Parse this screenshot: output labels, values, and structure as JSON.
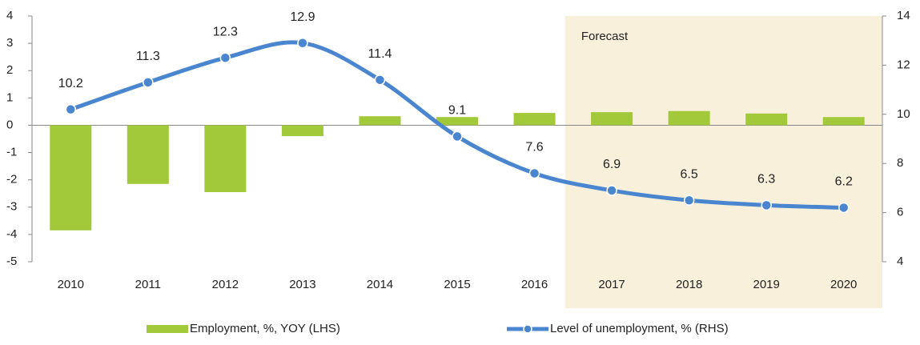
{
  "chart_data": {
    "type": "bar_line",
    "categories": [
      "2010",
      "2011",
      "2012",
      "2013",
      "2014",
      "2015",
      "2016",
      "2017",
      "2018",
      "2019",
      "2020"
    ],
    "series": [
      {
        "name": "Employment, %, YOY (LHS)",
        "type": "bar",
        "color": "#a2c93a",
        "axis": "y",
        "values": [
          -3.85,
          -2.15,
          -2.45,
          -0.4,
          0.33,
          0.3,
          0.45,
          0.48,
          0.52,
          0.43,
          0.3
        ]
      },
      {
        "name": "Level of unemployment, % (RHS)",
        "type": "line",
        "color": "#4a86d0",
        "axis": "y2",
        "values": [
          10.2,
          11.3,
          12.3,
          12.9,
          11.4,
          9.1,
          7.6,
          6.9,
          6.5,
          6.3,
          6.2
        ]
      }
    ],
    "ylim": [
      -5,
      4
    ],
    "yticks": [
      -5,
      -4,
      -3,
      -2,
      -1,
      0,
      1,
      2,
      3,
      4
    ],
    "y2lim": [
      4,
      14
    ],
    "y2ticks": [
      4,
      6,
      8,
      10,
      12,
      14
    ],
    "annotation": "Forecast",
    "forecast_from": "2017",
    "legend": "bottom"
  }
}
